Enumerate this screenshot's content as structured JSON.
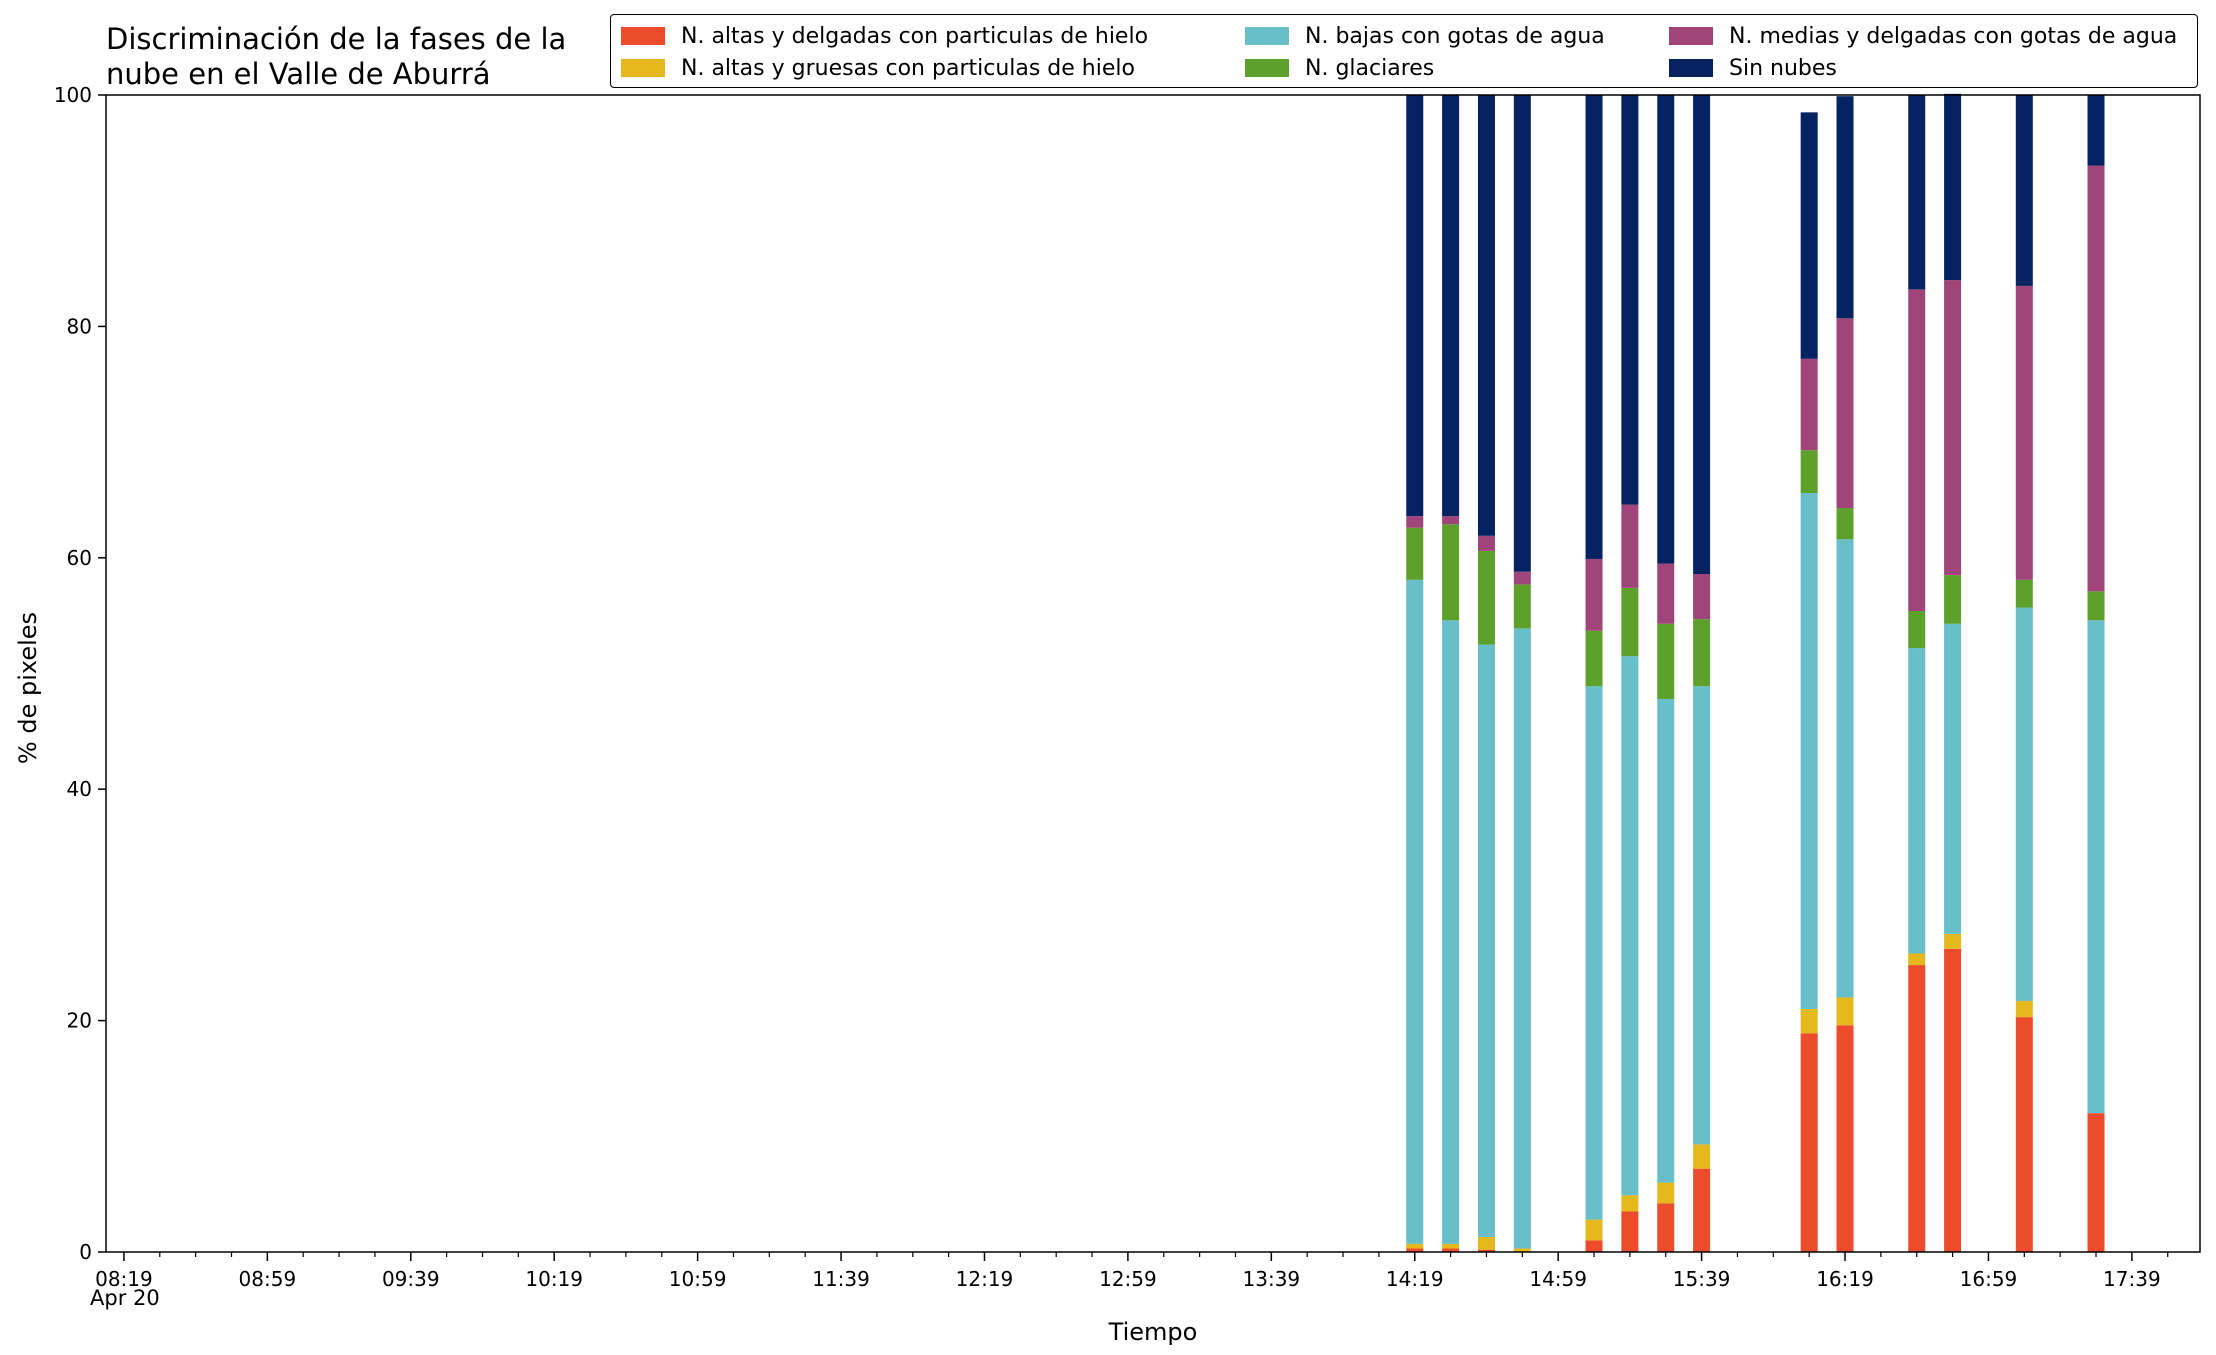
{
  "chart_data": {
    "type": "bar",
    "stacked": true,
    "title": "Discriminación de la fases de la\nnube en el Valle de Aburrá",
    "xlabel": "Tiempo",
    "ylabel": "% de pixeles",
    "ylim": [
      0,
      100
    ],
    "yticks": [
      0,
      20,
      40,
      60,
      80,
      100
    ],
    "xlim": [
      "08:14",
      "17:58"
    ],
    "x_major_ticks": [
      "08:19",
      "08:59",
      "09:39",
      "10:19",
      "10:59",
      "11:39",
      "12:19",
      "12:59",
      "13:39",
      "14:19",
      "14:59",
      "15:39",
      "16:19",
      "16:59",
      "17:39"
    ],
    "x_minor_ticks": [
      "08:29",
      "08:39",
      "08:49",
      "09:09",
      "09:19",
      "09:29",
      "09:49",
      "09:59",
      "10:09",
      "10:29",
      "10:39",
      "10:49",
      "11:09",
      "11:19",
      "11:29",
      "11:49",
      "11:59",
      "12:09",
      "12:29",
      "12:39",
      "12:49",
      "13:09",
      "13:19",
      "13:29",
      "13:49",
      "13:59",
      "14:09",
      "14:29",
      "14:39",
      "14:49",
      "15:09",
      "15:19",
      "15:29",
      "15:49",
      "15:59",
      "16:09",
      "16:29",
      "16:39",
      "16:49",
      "17:09",
      "17:19",
      "17:29",
      "17:49"
    ],
    "date_label": "Apr 20",
    "legend_position": "top-right",
    "legend_columns": 3,
    "grid": false,
    "categories": [
      "14:19",
      "14:29",
      "14:39",
      "14:49",
      "15:09",
      "15:19",
      "15:29",
      "15:39",
      "16:09",
      "16:19",
      "16:39",
      "16:49",
      "17:09",
      "17:29"
    ],
    "series": [
      {
        "name": "N. altas y delgadas con particulas de hielo",
        "color": "#ec4b2c",
        "values": [
          0.3,
          0.3,
          0.2,
          0.0,
          1.0,
          3.5,
          4.2,
          7.2,
          18.9,
          19.6,
          24.8,
          26.2,
          20.3,
          12.0
        ]
      },
      {
        "name": "N. altas y gruesas con particulas de hielo",
        "color": "#e5b81e",
        "values": [
          0.4,
          0.4,
          1.1,
          0.3,
          1.8,
          1.4,
          1.8,
          2.1,
          2.1,
          2.4,
          1.0,
          1.3,
          1.4,
          0.0
        ]
      },
      {
        "name": "N. bajas con gotas de agua",
        "color": "#68bfca",
        "values": [
          57.4,
          53.9,
          51.2,
          53.6,
          46.1,
          46.6,
          41.8,
          39.6,
          44.6,
          39.6,
          26.4,
          26.8,
          34.0,
          42.6
        ]
      },
      {
        "name": "N. glaciares",
        "color": "#5ea02c",
        "values": [
          4.5,
          8.3,
          8.1,
          3.8,
          4.8,
          5.9,
          6.5,
          5.8,
          3.7,
          2.7,
          3.2,
          4.2,
          2.4,
          2.5
        ]
      },
      {
        "name": "N. medias y delgadas con gotas de agua",
        "color": "#a0457a",
        "values": [
          1.0,
          0.7,
          1.3,
          1.1,
          6.2,
          7.2,
          5.2,
          3.9,
          7.9,
          16.4,
          27.8,
          25.5,
          25.4,
          36.8
        ]
      },
      {
        "name": "Sin nubes",
        "color": "#052262",
        "values": [
          36.4,
          36.4,
          38.1,
          41.2,
          40.1,
          35.4,
          40.5,
          41.4,
          21.3,
          19.2,
          16.8,
          16.1,
          16.5,
          6.1
        ]
      }
    ]
  }
}
